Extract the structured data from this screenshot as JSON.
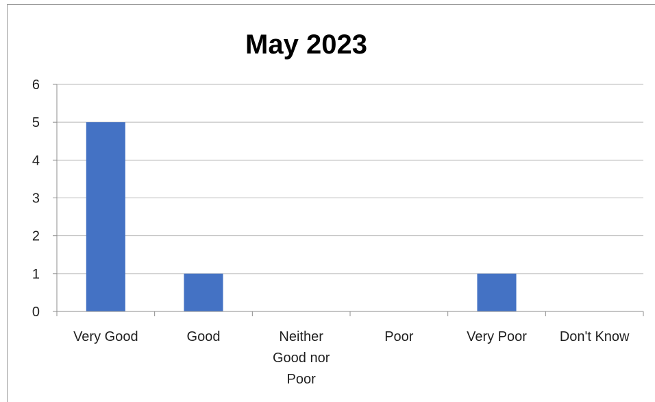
{
  "chart_data": {
    "type": "bar",
    "title": "May  2023",
    "categories": [
      "Very Good",
      "Good",
      "Neither Good nor Poor",
      "Poor",
      "Very Poor",
      "Don't Know"
    ],
    "category_label_lines": [
      [
        "Very Good"
      ],
      [
        "Good"
      ],
      [
        "Neither",
        "Good nor",
        "Poor"
      ],
      [
        "Poor"
      ],
      [
        "Very Poor"
      ],
      [
        "Don't Know"
      ]
    ],
    "values": [
      5,
      1,
      0,
      0,
      1,
      0
    ],
    "ylim": [
      0,
      6
    ],
    "yticks": [
      0,
      1,
      2,
      3,
      4,
      5,
      6
    ],
    "xlabel": "",
    "ylabel": "",
    "grid": true,
    "legend": "none",
    "colors": {
      "bar": "#4472C4",
      "gridline": "#b7b7b7",
      "axis": "#8c8c8c",
      "text": "#1f1f1f"
    }
  }
}
